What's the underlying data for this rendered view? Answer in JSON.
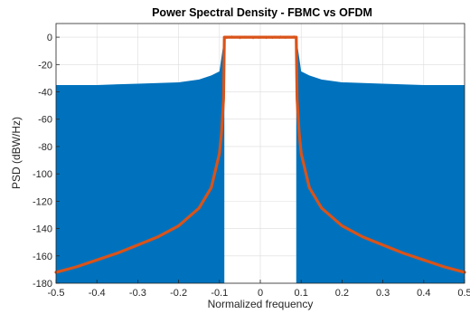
{
  "chart_data": {
    "type": "area",
    "title": "Power Spectral Density - FBMC vs OFDM",
    "xlabel": "Normalized frequency",
    "ylabel": "PSD (dBW/Hz)",
    "xlim": [
      -0.5,
      0.5
    ],
    "ylim": [
      -180,
      10
    ],
    "xticks": [
      -0.5,
      -0.4,
      -0.3,
      -0.2,
      -0.1,
      0,
      0.1,
      0.2,
      0.3,
      0.4,
      0.5
    ],
    "xtick_labels": [
      "-0.5",
      "-0.4",
      "-0.3",
      "-0.2",
      "-0.1",
      "0",
      "0.1",
      "0.2",
      "0.3",
      "0.4",
      "0.5"
    ],
    "yticks": [
      0,
      -20,
      -40,
      -60,
      -80,
      -100,
      -120,
      -140,
      -160,
      -180
    ],
    "ytick_labels": [
      "0",
      "-20",
      "-40",
      "-60",
      "-80",
      "-100",
      "-120",
      "-140",
      "-160",
      "-180"
    ],
    "grid": true,
    "passband_edge": 0.088,
    "series": [
      {
        "color": "#0072BD",
        "style": "filled",
        "x": [
          -0.5,
          -0.4,
          -0.3,
          -0.2,
          -0.15,
          -0.12,
          -0.1,
          -0.088,
          0.088,
          0.1,
          0.12,
          0.15,
          0.2,
          0.3,
          0.4,
          0.5
        ],
        "y": [
          -35,
          -35,
          -34,
          -33,
          -31,
          -28,
          -25,
          0,
          0,
          -25,
          -28,
          -31,
          -33,
          -34,
          -35,
          -35
        ]
      },
      {
        "color": "#D95319",
        "style": "line",
        "x": [
          -0.5,
          -0.45,
          -0.4,
          -0.35,
          -0.3,
          -0.25,
          -0.2,
          -0.15,
          -0.12,
          -0.1,
          -0.095,
          -0.09,
          -0.088,
          0,
          0.088,
          0.09,
          0.095,
          0.1,
          0.12,
          0.15,
          0.2,
          0.25,
          0.3,
          0.35,
          0.4,
          0.45,
          0.5
        ],
        "y": [
          -172,
          -168,
          -163,
          -158,
          -152,
          -146,
          -138,
          -125,
          -110,
          -85,
          -70,
          -45,
          0,
          0,
          0,
          -45,
          -70,
          -85,
          -110,
          -125,
          -138,
          -146,
          -152,
          -158,
          -163,
          -168,
          -172
        ]
      }
    ]
  }
}
